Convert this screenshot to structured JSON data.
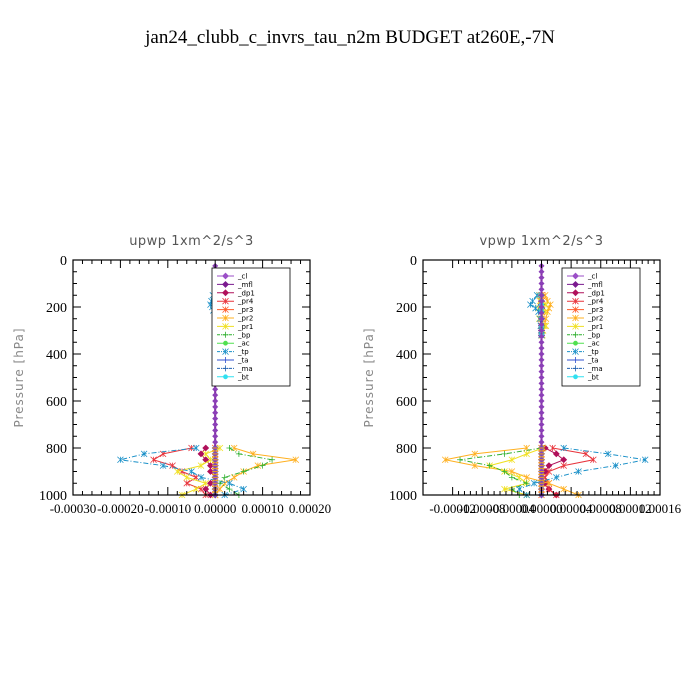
{
  "title": "jan24_clubb_c_invrs_tau_n2m  BUDGET at260E,-7N",
  "legend_entries": [
    "_cl",
    "_mfl",
    "_dp1",
    "_pr4",
    "_pr3",
    "_pr2",
    "_pr1",
    "_bp",
    "_ac",
    "_tp",
    "_ta",
    "_ma",
    "_bt"
  ],
  "colors": {
    "_cl": "#9b4fc7",
    "_mfl": "#7a1a8f",
    "_dp1": "#b0105a",
    "_pr4": "#e8343c",
    "_pr3": "#ff5a28",
    "_pr2": "#ffb020",
    "_pr1": "#f0e020",
    "_bp": "#30b030",
    "_ac": "#50e050",
    "_tp": "#1a90c8",
    "_ta": "#3050d0",
    "_ma": "#2060b0",
    "_bt": "#30e0f0"
  },
  "chart_data": [
    {
      "type": "line",
      "title": "upwp   1xm^2/s^3",
      "ylabel": "Pressure [hPa]",
      "ylim": [
        1000,
        0
      ],
      "yticks": [
        0,
        200,
        400,
        600,
        800,
        1000
      ],
      "ytick_labels": [
        "0",
        "200",
        "400",
        "600",
        "800",
        "1000"
      ],
      "xlim": [
        -0.0003,
        0.0002
      ],
      "xticks": [
        -0.0003,
        -0.0002,
        -0.0001,
        0,
        0.0001,
        0.0002
      ],
      "xtick_labels": [
        "-0.00030",
        "-0.00020",
        "-0.00010",
        "0.00000",
        "0.00010",
        "0.00020"
      ],
      "legend_position": "top-right",
      "pressure": [
        150,
        175,
        190,
        200,
        215,
        800,
        825,
        850,
        875,
        900,
        925,
        950,
        975,
        1000
      ],
      "series": [
        {
          "name": "_cl",
          "values": [
            0,
            0,
            0,
            0,
            0,
            0,
            0,
            0,
            0,
            0,
            0,
            0,
            0,
            0
          ]
        },
        {
          "name": "_mfl",
          "values": [
            0,
            0,
            0,
            0,
            0,
            0,
            0,
            0,
            0,
            0,
            0,
            0,
            0,
            0
          ]
        },
        {
          "name": "_dp1",
          "values": [
            0,
            0,
            0,
            0,
            0,
            -2e-05,
            -3e-05,
            -2e-05,
            -1e-05,
            -1e-05,
            0,
            -1e-05,
            -2e-05,
            -1e-05
          ]
        },
        {
          "name": "_pr4",
          "values": [
            0,
            0,
            0,
            0,
            0,
            -5e-05,
            -0.00011,
            -0.00013,
            -9e-05,
            -7e-05,
            -4e-05,
            -6e-05,
            -3e-05,
            -2e-05
          ]
        },
        {
          "name": "_pr3",
          "values": [
            0,
            0,
            0,
            0,
            0,
            0,
            0,
            0,
            0,
            0,
            0,
            0,
            0,
            0
          ]
        },
        {
          "name": "_pr2",
          "values": [
            5e-06,
            6e-06,
            8e-06,
            5e-06,
            4e-06,
            4e-05,
            8e-05,
            0.00017,
            9e-05,
            6e-05,
            4e-05,
            2e-05,
            1e-05,
            0
          ]
        },
        {
          "name": "_pr1",
          "values": [
            0,
            0,
            0,
            0,
            0,
            1e-05,
            -2e-05,
            -1e-05,
            -3e-05,
            -8e-05,
            -6e-05,
            -2e-05,
            -4e-05,
            -7e-05
          ]
        },
        {
          "name": "_bp",
          "values": [
            0,
            0,
            0,
            0,
            0,
            3e-05,
            5e-05,
            0.00012,
            0.0001,
            6e-05,
            2e-05,
            1e-05,
            3e-05,
            5e-05
          ]
        },
        {
          "name": "_ac",
          "values": [
            0,
            0,
            0,
            0,
            0,
            0,
            0,
            0,
            0,
            0,
            0,
            0,
            0,
            0
          ]
        },
        {
          "name": "_tp",
          "values": [
            -5e-06,
            -8e-06,
            -1e-05,
            -6e-06,
            -4e-06,
            -4e-05,
            -0.00015,
            -0.0002,
            -0.00011,
            -5e-05,
            -3e-05,
            3e-05,
            6e-05,
            2e-05
          ]
        },
        {
          "name": "_ta",
          "values": [
            0,
            0,
            0,
            0,
            0,
            0,
            0,
            0,
            0,
            0,
            0,
            0,
            0,
            0
          ]
        },
        {
          "name": "_ma",
          "values": [
            0,
            0,
            0,
            0,
            0,
            0,
            0,
            0,
            0,
            0,
            0,
            0,
            0,
            0
          ]
        },
        {
          "name": "_bt",
          "values": [
            0,
            0,
            0,
            0,
            0,
            0,
            0,
            0,
            0,
            0,
            0,
            0,
            0,
            0
          ]
        }
      ]
    },
    {
      "type": "line",
      "title": "vpwp   1xm^2/s^3",
      "ylabel": "Pressure [hPa]",
      "ylim": [
        1000,
        0
      ],
      "yticks": [
        0,
        200,
        400,
        600,
        800,
        1000
      ],
      "ytick_labels": [
        "0",
        "200",
        "400",
        "600",
        "800",
        "1000"
      ],
      "xlim": [
        -0.00016,
        0.00016
      ],
      "xticks": [
        -0.00012,
        -8e-05,
        -4e-05,
        0,
        4e-05,
        8e-05,
        0.00012,
        0.00016
      ],
      "xtick_labels": [
        "-0.00012",
        "-0.00008",
        "-0.00004",
        "0.00000",
        "0.00004",
        "0.00008",
        "0.00012",
        "0.00016"
      ],
      "legend_position": "top-right",
      "pressure": [
        150,
        175,
        190,
        205,
        220,
        250,
        280,
        300,
        320,
        800,
        825,
        850,
        875,
        900,
        925,
        950,
        975,
        1000
      ],
      "series": [
        {
          "name": "_cl",
          "values": [
            0,
            0,
            0,
            0,
            0,
            0,
            0,
            0,
            0,
            0,
            0,
            0,
            0,
            0,
            0,
            0,
            0,
            0
          ]
        },
        {
          "name": "_mfl",
          "values": [
            0,
            0,
            0,
            0,
            0,
            0,
            0,
            0,
            0,
            0,
            0,
            0,
            0,
            0,
            0,
            0,
            0,
            0
          ]
        },
        {
          "name": "_dp1",
          "values": [
            0,
            0,
            0,
            0,
            0,
            0,
            0,
            0,
            0,
            5e-06,
            2e-05,
            3e-05,
            1e-05,
            5e-06,
            0,
            5e-06,
            1e-05,
            2e-05
          ]
        },
        {
          "name": "_pr4",
          "values": [
            0,
            0,
            0,
            0,
            0,
            0,
            0,
            0,
            0,
            1.5e-05,
            6e-05,
            7e-05,
            3e-05,
            1e-05,
            5e-06,
            1e-05,
            1e-05,
            2e-05
          ]
        },
        {
          "name": "_pr3",
          "values": [
            0,
            0,
            0,
            0,
            0,
            0,
            0,
            0,
            0,
            0,
            0,
            0,
            0,
            0,
            0,
            0,
            0,
            0
          ]
        },
        {
          "name": "_pr2",
          "values": [
            5e-06,
            8e-06,
            1.2e-05,
            1e-05,
            8e-06,
            6e-06,
            4e-06,
            2e-06,
            1e-06,
            -2e-05,
            -9e-05,
            -0.00013,
            -9e-05,
            -4e-05,
            -2e-05,
            1e-05,
            3e-05,
            5e-05
          ]
        },
        {
          "name": "_pr1",
          "values": [
            -3e-06,
            -2e-06,
            6e-06,
            -4e-06,
            5e-06,
            -3e-06,
            6e-06,
            2e-06,
            1e-06,
            2e-06,
            -2e-05,
            -4e-05,
            -7e-05,
            -5e-05,
            -3e-05,
            -2e-05,
            -5e-05,
            -2e-05
          ]
        },
        {
          "name": "_bp",
          "values": [
            0,
            0,
            0,
            0,
            0,
            0,
            0,
            0,
            0,
            0,
            -5e-05,
            -0.00011,
            -7e-05,
            -5e-05,
            -4e-05,
            -2e-05,
            -4e-05,
            -3e-05
          ]
        },
        {
          "name": "_ac",
          "values": [
            0,
            0,
            0,
            0,
            0,
            0,
            0,
            0,
            0,
            0,
            0,
            0,
            0,
            0,
            0,
            0,
            0,
            0
          ]
        },
        {
          "name": "_tp",
          "values": [
            -6e-06,
            -1.2e-05,
            -1.5e-05,
            -8e-06,
            -4e-06,
            -2e-06,
            -1e-06,
            0,
            0,
            3e-05,
            9e-05,
            0.00014,
            0.0001,
            5e-05,
            2e-05,
            -1e-05,
            -3e-05,
            -2e-05
          ]
        },
        {
          "name": "_ta",
          "values": [
            0,
            0,
            0,
            0,
            0,
            0,
            0,
            0,
            0,
            0,
            0,
            0,
            0,
            0,
            0,
            0,
            0,
            0
          ]
        },
        {
          "name": "_ma",
          "values": [
            0,
            0,
            0,
            0,
            0,
            0,
            0,
            0,
            0,
            0,
            0,
            0,
            0,
            0,
            0,
            0,
            0,
            0
          ]
        },
        {
          "name": "_bt",
          "values": [
            0,
            0,
            0,
            0,
            0,
            0,
            0,
            0,
            0,
            0,
            0,
            0,
            0,
            0,
            0,
            0,
            0,
            0
          ]
        }
      ]
    }
  ]
}
